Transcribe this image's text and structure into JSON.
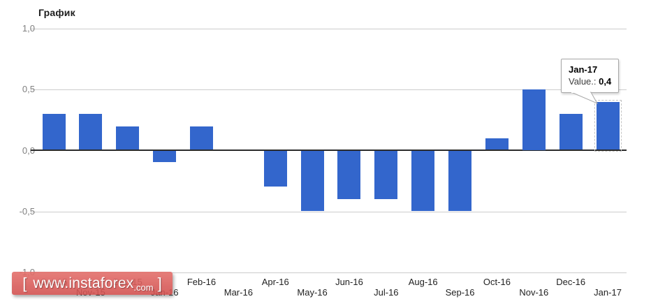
{
  "title": "График",
  "tooltip": {
    "label": "Jan-17",
    "value_label": "Value.:",
    "value": "0,4"
  },
  "watermark": {
    "bracket_left": "[",
    "domain": "www.instaforex",
    "tld": ".com",
    "bracket_right": "]"
  },
  "chart_data": {
    "type": "bar",
    "title": "График",
    "categories": [
      "Oct-15",
      "Nov-15",
      "Dec-15",
      "Jan-16",
      "Feb-16",
      "Mar-16",
      "Apr-16",
      "May-16",
      "Jun-16",
      "Jul-16",
      "Aug-16",
      "Sep-16",
      "Oct-16",
      "Nov-16",
      "Dec-16",
      "Jan-17"
    ],
    "values": [
      0.3,
      0.3,
      0.2,
      -0.1,
      0.2,
      0,
      -0.3,
      -0.5,
      -0.4,
      -0.4,
      -0.5,
      -0.5,
      0.1,
      0.5,
      0.3,
      0.4
    ],
    "y_ticks": [
      {
        "label": "1,0",
        "value": 1
      },
      {
        "label": "0,5",
        "value": 0.5
      },
      {
        "label": "0,0",
        "value": 0
      },
      {
        "label": "-0,5",
        "value": -0.5
      },
      {
        "label": "-1,0",
        "value": -1
      }
    ],
    "ylim": [
      -1,
      1
    ],
    "xlabel": "",
    "ylabel": "",
    "grid": true,
    "legend_position": "none",
    "bar_color": "#3366cc",
    "axis_color": "#2b2b2b",
    "grid_color": "#cccccc",
    "selected_index": 15,
    "selected_tooltip": {
      "category": "Jan-17",
      "value": "0,4"
    }
  }
}
